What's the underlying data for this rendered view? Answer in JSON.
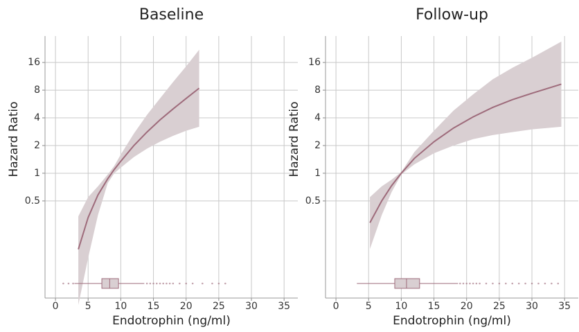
{
  "chart_data": [
    {
      "type": "line",
      "title": "Baseline",
      "xlabel": "Endotrophin (ng/ml)",
      "ylabel": "Hazard Ratio",
      "x": [
        3.5,
        5,
        6.5,
        8,
        9,
        10,
        12,
        14,
        16,
        18,
        20,
        22
      ],
      "values": [
        0.149,
        0.33,
        0.58,
        0.87,
        1.1,
        1.35,
        2.0,
        2.8,
        3.8,
        5.0,
        6.5,
        8.4
      ],
      "lower": [
        0.037,
        0.12,
        0.35,
        0.78,
        1.0,
        1.15,
        1.5,
        1.85,
        2.2,
        2.55,
        2.9,
        3.2
      ],
      "upper": [
        0.34,
        0.55,
        0.72,
        0.97,
        1.2,
        1.6,
        2.7,
        4.3,
        6.5,
        9.8,
        14.5,
        22
      ],
      "color": "#9e6b7b",
      "band_color": "#d9cfd2",
      "box": {
        "min": 2.9,
        "q1": 7.1,
        "median": 8.3,
        "q3": 9.65,
        "max": 13.6,
        "outliers": [
          1.2,
          2.0,
          2.7,
          14,
          14.5,
          15,
          15.5,
          16,
          16.5,
          17,
          17.5,
          18,
          19,
          20,
          21,
          22.5,
          24,
          25,
          26
        ]
      },
      "xlim": [
        -1.6,
        37.1
      ],
      "xticks": [
        0,
        5,
        10,
        15,
        20,
        25,
        30,
        35
      ],
      "ylim": [
        0.044,
        31
      ],
      "yticks": [
        0.5,
        1,
        2,
        4,
        8,
        16
      ],
      "log_y": true,
      "grid": true
    },
    {
      "type": "line",
      "title": "Follow-up",
      "xlabel": "Endotrophin (ng/ml)",
      "ylabel": "Hazard Ratio",
      "x": [
        5.2,
        7,
        8.5,
        10,
        12,
        15,
        18,
        21,
        24,
        27,
        30,
        34.5
      ],
      "values": [
        0.29,
        0.5,
        0.73,
        1.0,
        1.45,
        2.2,
        3.1,
        4.1,
        5.2,
        6.3,
        7.4,
        9.3
      ],
      "lower": [
        0.15,
        0.35,
        0.62,
        0.97,
        1.25,
        1.65,
        2.0,
        2.35,
        2.6,
        2.8,
        3.0,
        3.2
      ],
      "upper": [
        0.55,
        0.72,
        0.85,
        1.03,
        1.7,
        2.9,
        4.8,
        7.2,
        10.5,
        14,
        18,
        27
      ],
      "color": "#9e6b7b",
      "band_color": "#d9cfd2",
      "box": {
        "min": 3.2,
        "q1": 9.0,
        "median": 10.8,
        "q3": 12.8,
        "max": 18.7,
        "outliers": [
          19,
          19.5,
          20,
          20.5,
          21,
          21.5,
          22,
          23,
          24,
          25,
          26,
          27,
          28,
          29,
          30,
          31,
          32,
          33,
          34
        ]
      },
      "xlim": [
        -1.6,
        37.1
      ],
      "xticks": [
        0,
        5,
        10,
        15,
        20,
        25,
        30,
        35
      ],
      "ylim": [
        0.044,
        31
      ],
      "yticks": [
        0.5,
        1,
        2,
        4,
        8,
        16
      ],
      "log_y": true,
      "grid": true
    }
  ]
}
